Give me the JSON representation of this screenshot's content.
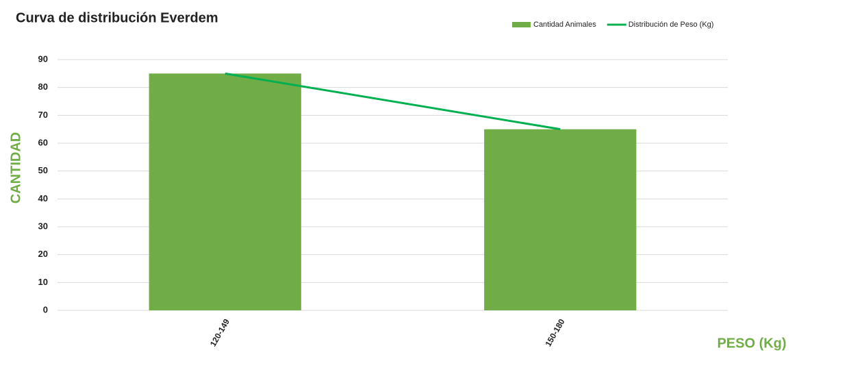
{
  "chart_data": {
    "type": "combo",
    "title": "Curva de distribución Everdem",
    "x_label": "PESO (Kg)",
    "y_label": "CANTIDAD",
    "categories": [
      "120-149",
      "150-180"
    ],
    "series": [
      {
        "name": "Cantidad Animales",
        "type": "bar",
        "color": "#70ad47",
        "values": [
          85,
          65
        ]
      },
      {
        "name": "Distribución de Peso (Kg)",
        "type": "line",
        "color": "#00b050",
        "values": [
          85,
          65
        ]
      }
    ],
    "ylim": [
      0,
      90
    ],
    "yticks": [
      0,
      10,
      20,
      30,
      40,
      50,
      60,
      70,
      80,
      90
    ],
    "grid": true,
    "legend": "top-right",
    "axis_label_color": "#70ad47"
  }
}
